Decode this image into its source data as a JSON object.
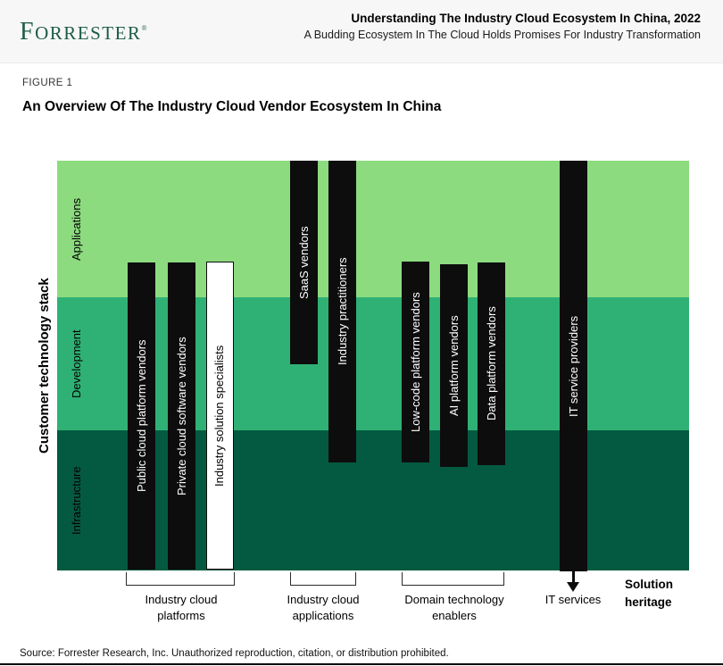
{
  "header": {
    "logo_text": "FORRESTER",
    "registered_mark": "®",
    "report_title": "Understanding The Industry Cloud Ecosystem In China, 2022",
    "report_subtitle": "A Budding Ecosystem In The Cloud Holds Promises For Industry Transformation"
  },
  "figure": {
    "label": "FIGURE 1",
    "title": "An Overview Of The Industry Cloud Vendor Ecosystem In China"
  },
  "chart_data": {
    "type": "stacked-band-ecosystem-diagram",
    "axis_label": "Customer technology stack",
    "layers": [
      {
        "label": "Applications",
        "color": "#8ddb7f",
        "position": "top"
      },
      {
        "label": "Development",
        "color": "#2fb175",
        "position": "middle"
      },
      {
        "label": "Infrastructure",
        "color": "#045a40",
        "position": "bottom"
      }
    ],
    "bars": [
      {
        "label": "Public cloud platform vendors",
        "group": "Industry cloud platforms",
        "fill": "black",
        "span": "lower applications to infrastructure"
      },
      {
        "label": "Private cloud software vendors",
        "group": "Industry cloud platforms",
        "fill": "black",
        "span": "lower applications to infrastructure"
      },
      {
        "label": "Industry solution specialists",
        "group": "Industry cloud platforms",
        "fill": "white-outlined",
        "span": "lower applications to infrastructure"
      },
      {
        "label": "SaaS vendors",
        "group": "Industry cloud applications",
        "fill": "black",
        "span": "applications to mid development"
      },
      {
        "label": "Industry practitioners",
        "group": "Industry cloud applications",
        "fill": "black",
        "span": "applications to upper infrastructure"
      },
      {
        "label": "Low-code platform vendors",
        "group": "Domain technology enablers",
        "fill": "black",
        "span": "lower applications to upper infrastructure"
      },
      {
        "label": "AI platform vendors",
        "group": "Domain technology enablers",
        "fill": "black",
        "span": "lower applications to upper infrastructure"
      },
      {
        "label": "Data platform vendors",
        "group": "Domain technology enablers",
        "fill": "black",
        "span": "lower applications to upper infrastructure"
      },
      {
        "label": "IT service providers",
        "group": "IT services",
        "fill": "black",
        "span": "applications through infrastructure with arrow below"
      }
    ],
    "groups": [
      {
        "label": "Industry cloud platforms",
        "bracket": true
      },
      {
        "label": "Industry cloud applications",
        "bracket": true
      },
      {
        "label": "Domain technology enablers",
        "bracket": true
      },
      {
        "label": "IT services",
        "bracket": false,
        "arrow": true
      }
    ],
    "solution_heritage_label": "Solution heritage",
    "colors": {
      "applications_band": "#8ddb7f",
      "development_band": "#2fb175",
      "infrastructure_band": "#045a40",
      "bar_black": "#0d0d0d",
      "bar_white": "#ffffff",
      "logo_green": "#1d5b45",
      "header_background": "#f7f7f7"
    }
  },
  "footer": {
    "source_note": "Source: Forrester Research, Inc. Unauthorized reproduction, citation, or distribution prohibited."
  }
}
